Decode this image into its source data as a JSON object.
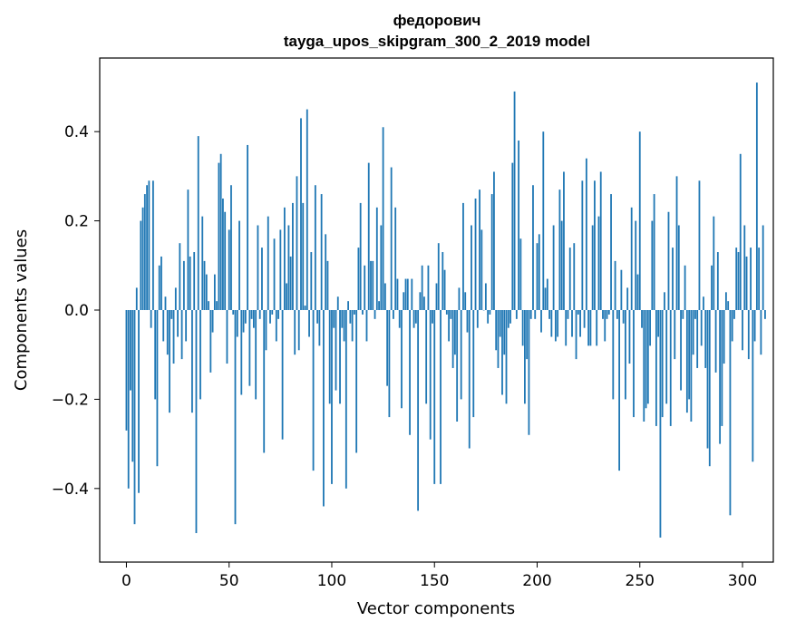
{
  "chart_data": {
    "type": "bar",
    "title": "федорович",
    "subtitle": "tayga_upos_skipgram_300_2_2019 model",
    "xlabel": "Vector components",
    "ylabel": "Components values",
    "bar_color": "#1f77b4",
    "xlim": [
      -13,
      315
    ],
    "ylim": [
      -0.565,
      0.565
    ],
    "xticks": [
      0,
      50,
      100,
      150,
      200,
      250,
      300
    ],
    "yticks": [
      -0.4,
      -0.2,
      0.0,
      0.2,
      0.4
    ],
    "ytick_labels": [
      "−0.4",
      "−0.2",
      "0.0",
      "0.2",
      "0.4"
    ],
    "xtick_labels": [
      "0",
      "50",
      "100",
      "150",
      "200",
      "250",
      "300"
    ],
    "values": [
      -0.27,
      -0.4,
      -0.18,
      -0.34,
      -0.48,
      0.05,
      -0.41,
      0.2,
      0.23,
      0.26,
      0.28,
      0.29,
      -0.04,
      0.29,
      -0.2,
      -0.35,
      0.1,
      0.12,
      -0.07,
      0.03,
      -0.1,
      -0.23,
      -0.02,
      -0.12,
      0.05,
      -0.06,
      0.15,
      -0.11,
      0.11,
      -0.07,
      0.27,
      0.12,
      -0.23,
      0.13,
      -0.5,
      0.39,
      -0.2,
      0.21,
      0.11,
      0.08,
      0.02,
      -0.14,
      -0.05,
      0.08,
      0.02,
      0.33,
      0.35,
      0.25,
      0.22,
      -0.12,
      0.18,
      0.28,
      -0.01,
      -0.48,
      -0.06,
      0.2,
      -0.19,
      -0.05,
      -0.03,
      0.37,
      -0.17,
      -0.02,
      -0.04,
      -0.2,
      0.19,
      -0.02,
      0.14,
      -0.32,
      -0.09,
      0.21,
      -0.03,
      -0.01,
      0.16,
      -0.07,
      -0.02,
      0.18,
      -0.29,
      0.23,
      0.06,
      0.19,
      0.12,
      0.24,
      -0.1,
      0.3,
      -0.09,
      0.43,
      0.24,
      0.01,
      0.45,
      -0.06,
      0.13,
      -0.36,
      0.28,
      -0.03,
      -0.08,
      0.26,
      -0.44,
      0.17,
      0.11,
      -0.21,
      -0.39,
      -0.04,
      -0.18,
      0.03,
      -0.21,
      -0.04,
      -0.07,
      -0.4,
      0.02,
      -0.03,
      -0.07,
      -0.01,
      -0.32,
      0.14,
      0.24,
      -0.01,
      0.1,
      -0.07,
      0.33,
      0.11,
      0.11,
      -0.02,
      0.23,
      0.02,
      0.19,
      0.41,
      0.06,
      -0.17,
      -0.24,
      0.32,
      -0.02,
      0.23,
      0.07,
      -0.04,
      -0.22,
      0.04,
      0.07,
      0.07,
      -0.28,
      0.07,
      -0.04,
      -0.03,
      -0.45,
      0.04,
      0.1,
      0.03,
      -0.21,
      0.1,
      -0.29,
      -0.03,
      -0.39,
      0.06,
      0.15,
      -0.39,
      0.13,
      0.09,
      -0.01,
      -0.07,
      -0.02,
      -0.13,
      -0.1,
      -0.25,
      0.05,
      -0.2,
      0.24,
      0.04,
      -0.05,
      -0.31,
      0.19,
      -0.24,
      0.25,
      -0.04,
      0.27,
      0.18,
      0.0,
      0.06,
      -0.03,
      -0.01,
      0.26,
      0.31,
      -0.09,
      -0.13,
      -0.06,
      -0.19,
      -0.1,
      -0.21,
      -0.04,
      -0.03,
      0.33,
      0.49,
      -0.02,
      0.38,
      0.16,
      -0.08,
      -0.21,
      -0.11,
      -0.28,
      -0.02,
      0.28,
      -0.02,
      0.15,
      0.17,
      -0.05,
      0.4,
      0.05,
      0.07,
      -0.02,
      -0.06,
      0.19,
      -0.07,
      -0.06,
      0.27,
      0.2,
      0.31,
      -0.08,
      -0.02,
      0.14,
      -0.06,
      0.15,
      -0.11,
      -0.01,
      -0.06,
      0.29,
      -0.04,
      0.34,
      -0.08,
      -0.08,
      0.19,
      0.29,
      -0.08,
      0.21,
      0.31,
      -0.02,
      -0.07,
      -0.02,
      -0.01,
      0.26,
      -0.2,
      0.11,
      -0.02,
      -0.36,
      0.09,
      -0.03,
      -0.2,
      0.05,
      -0.12,
      0.23,
      -0.24,
      0.2,
      0.08,
      0.4,
      -0.04,
      -0.25,
      -0.22,
      -0.21,
      -0.08,
      0.2,
      0.26,
      -0.26,
      -0.06,
      -0.51,
      -0.24,
      0.04,
      -0.21,
      0.22,
      -0.26,
      0.14,
      -0.11,
      0.3,
      0.19,
      -0.18,
      -0.02,
      0.1,
      -0.23,
      -0.2,
      -0.25,
      -0.1,
      -0.02,
      -0.13,
      0.29,
      -0.08,
      0.03,
      -0.13,
      -0.31,
      -0.35,
      0.1,
      0.21,
      -0.14,
      0.13,
      -0.3,
      -0.26,
      -0.12,
      0.04,
      0.02,
      -0.46,
      -0.07,
      -0.02,
      0.14,
      0.13,
      0.35,
      -0.09,
      0.19,
      0.12,
      -0.11,
      0.14,
      -0.34,
      -0.07,
      0.51,
      0.14,
      -0.1,
      0.19,
      -0.02
    ]
  }
}
